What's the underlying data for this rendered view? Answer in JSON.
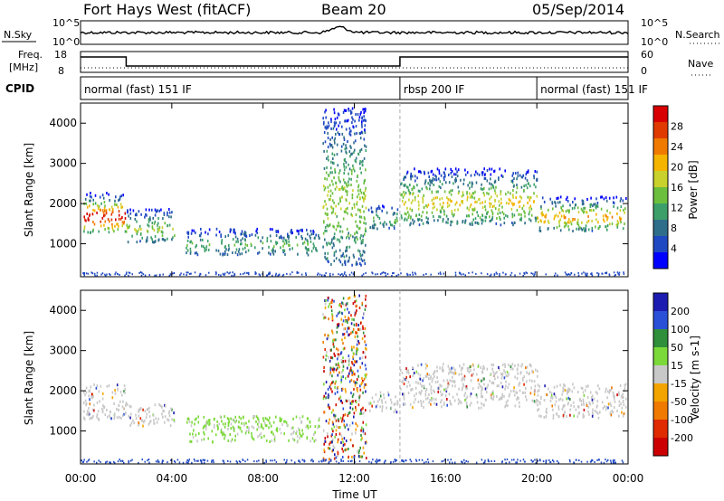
{
  "header": {
    "title": "Fort Hays West (fitACF)",
    "beam": "Beam 20",
    "date": "05/Sep/2014"
  },
  "noise_panel": {
    "left_label": "N.Sky",
    "right_label": "N.Search",
    "left_ticks": [
      "10^5",
      "10^0"
    ],
    "right_ticks": [
      "10^5",
      "10^0"
    ]
  },
  "freq_panel": {
    "left_label_1": "Freq.",
    "left_label_2": "[MHz]",
    "right_label": "Nave",
    "left_ticks": [
      "18",
      "8"
    ],
    "right_ticks": [
      "60",
      "0"
    ],
    "segments": [
      {
        "start_hour": 0.0,
        "end_hour": 2.0,
        "freq_level": "high"
      },
      {
        "start_hour": 2.0,
        "end_hour": 14.0,
        "freq_level": "low"
      },
      {
        "start_hour": 14.0,
        "end_hour": 24.0,
        "freq_level": "high"
      }
    ]
  },
  "cpid_panel": {
    "label": "CPID",
    "segments": [
      {
        "text": "normal (fast) 151 IF",
        "start_hour": 0.0
      },
      {
        "text": "rbsp 200 IF",
        "start_hour": 14.0
      },
      {
        "text": "normal (fast) 151 IF",
        "start_hour": 20.0
      }
    ]
  },
  "chart_data": [
    {
      "type": "heatmap",
      "name": "power",
      "ylabel": "Slant Range [km]",
      "ylim": [
        180,
        4500
      ],
      "xlim_hours": [
        0,
        24
      ],
      "yticks": [
        "1000",
        "2000",
        "3000",
        "4000"
      ],
      "colorbar": {
        "label": "Power [dB]",
        "range": [
          0,
          32
        ],
        "ticks": [
          "4",
          "8",
          "12",
          "16",
          "20",
          "24",
          "28"
        ],
        "colors": [
          "#0000ff",
          "#1f49c2",
          "#2e6e8a",
          "#3c9f6a",
          "#6cbf3c",
          "#c9d12c",
          "#f5b400",
          "#f07a00",
          "#e03a00",
          "#d80000"
        ]
      },
      "echo_regions": [
        {
          "t0": 0.1,
          "t1": 2.0,
          "r_low": 1300,
          "r_high": 2300,
          "peak_db": 28
        },
        {
          "t0": 2.0,
          "t1": 4.1,
          "r_low": 1050,
          "r_high": 1900,
          "peak_db": 14
        },
        {
          "t0": 4.6,
          "t1": 10.5,
          "r_low": 750,
          "r_high": 1400,
          "peak_db": 8
        },
        {
          "t0": 10.6,
          "t1": 12.5,
          "r_low": 500,
          "r_high": 4400,
          "peak_db": 12
        },
        {
          "t0": 12.6,
          "t1": 13.9,
          "r_low": 1400,
          "r_high": 2000,
          "peak_db": 8
        },
        {
          "t0": 14.0,
          "t1": 20.0,
          "r_low": 1500,
          "r_high": 2900,
          "peak_db": 16
        },
        {
          "t0": 20.0,
          "t1": 23.9,
          "r_low": 1350,
          "r_high": 2200,
          "peak_db": 20
        }
      ]
    },
    {
      "type": "heatmap",
      "name": "velocity",
      "ylabel": "Slant Range [km]",
      "xlabel": "Time UT",
      "ylim": [
        180,
        4500
      ],
      "xlim_hours": [
        0,
        24
      ],
      "yticks": [
        "1000",
        "2000",
        "3000",
        "4000"
      ],
      "xticks": [
        "00:00",
        "04:00",
        "08:00",
        "12:00",
        "16:00",
        "20:00",
        "00:00"
      ],
      "colorbar": {
        "label": "Velocity [m s-1]",
        "range": [
          -250,
          250
        ],
        "ticks": [
          "200",
          "100",
          "50",
          "15",
          "-15",
          "-50",
          "-100",
          "-200"
        ],
        "colors": [
          "#1c1cb0",
          "#2b50d8",
          "#2f8f3a",
          "#7cd93a",
          "#c8c8c8",
          "#f4a400",
          "#f07a00",
          "#e02a00",
          "#cc0000"
        ]
      },
      "echo_regions": [
        {
          "t0": 0.1,
          "t1": 2.0,
          "r_low": 1300,
          "r_high": 2200,
          "velocity_class": "ground"
        },
        {
          "t0": 2.0,
          "t1": 4.1,
          "r_low": 1150,
          "r_high": 1700,
          "velocity_class": "ground"
        },
        {
          "t0": 4.6,
          "t1": 10.5,
          "r_low": 750,
          "r_high": 1400,
          "velocity_class": "positive"
        },
        {
          "t0": 10.6,
          "t1": 12.5,
          "r_low": 300,
          "r_high": 4400,
          "velocity_class": "mixed"
        },
        {
          "t0": 12.6,
          "t1": 13.9,
          "r_low": 1500,
          "r_high": 2000,
          "velocity_class": "ground"
        },
        {
          "t0": 14.0,
          "t1": 20.0,
          "r_low": 1600,
          "r_high": 2700,
          "velocity_class": "ground"
        },
        {
          "t0": 20.0,
          "t1": 23.9,
          "r_low": 1350,
          "r_high": 2200,
          "velocity_class": "ground"
        }
      ]
    }
  ]
}
